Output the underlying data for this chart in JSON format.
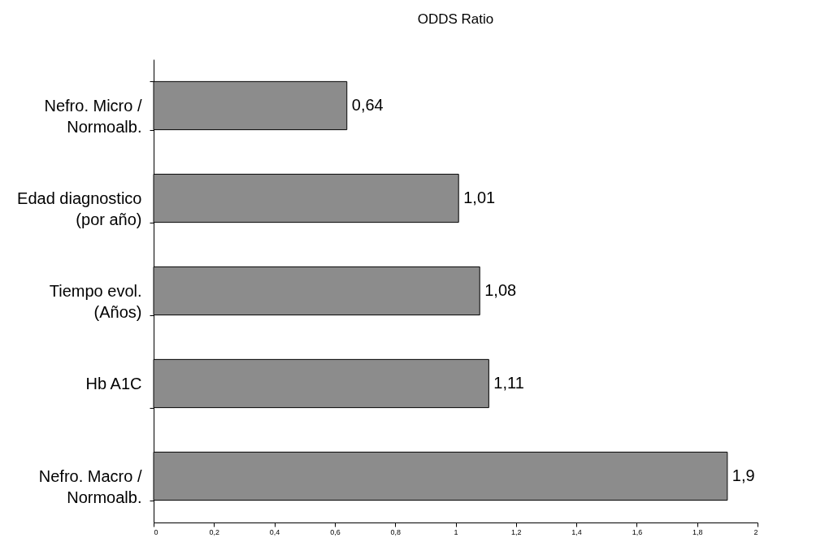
{
  "chart_data": {
    "type": "bar",
    "orientation": "horizontal",
    "title": "ODDS Ratio",
    "categories": [
      "Nefro. Micro /\nNormoalb.",
      "Edad diagnostico\n(por año)",
      "Tiempo evol.\n(Años)",
      "Hb A1C",
      "Nefro. Macro /\nNormoalb."
    ],
    "values": [
      0.64,
      1.01,
      1.08,
      1.11,
      1.9
    ],
    "color": "#8c8c8c",
    "xlim": [
      0,
      2
    ],
    "xticks": [
      0,
      {
        "value": 0.2,
        "label": "0,2"
      },
      {
        "value": 0.4,
        "label": "0,4"
      },
      {
        "value": 0.6,
        "label": "0,6"
      },
      {
        "value": 0.8,
        "label": "0,8"
      },
      1,
      {
        "value": 1.2,
        "label": "1,2"
      },
      {
        "value": 1.4,
        "label": "1,4"
      },
      {
        "value": 1.6,
        "label": "1,6"
      },
      {
        "value": 1.8,
        "label": "1,8"
      },
      2
    ],
    "value_labels": [
      "0,64",
      "1,01",
      "1,08",
      "1,11",
      "1,9"
    ],
    "grid": false
  }
}
